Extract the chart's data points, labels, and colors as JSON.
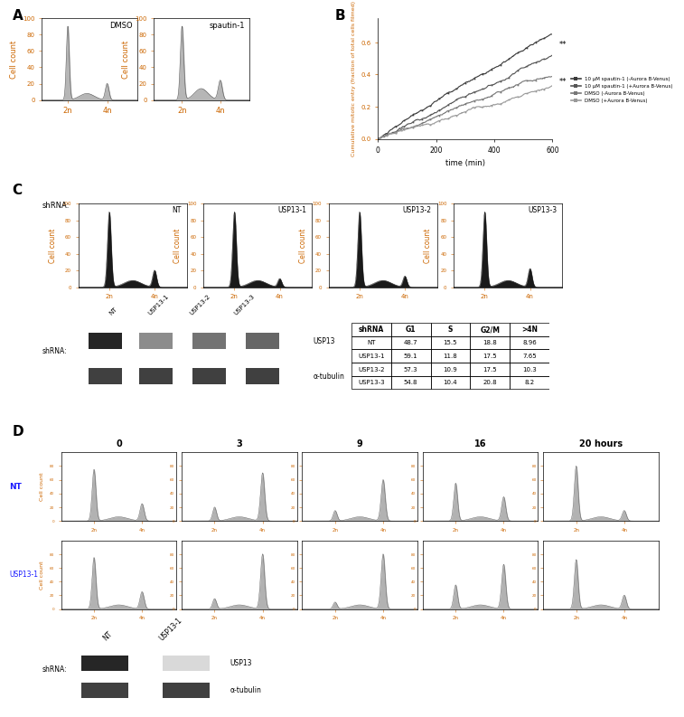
{
  "panel_A_titles": [
    "DMSO",
    "spautin-1"
  ],
  "panel_B_ylabel": "Cumulative mitotic entry (fraction of total cells filmed)",
  "panel_B_xlabel": "time (min)",
  "panel_B_legend": [
    "10 μM spautin-1 (-Aurora B-Venus)",
    "10 μM spautin-1 (+Aurora B-Venus)",
    "DMSO (-Aurora B-Venus)",
    "DMSO (+Aurora B-Venus)"
  ],
  "panel_C_shRNA_labels": [
    "NT",
    "USP13-1",
    "USP13-2",
    "USP13-3"
  ],
  "panel_C_table_headers": [
    "shRNA",
    "G1",
    "S",
    "G2/M",
    ">4N"
  ],
  "panel_C_table_data": [
    [
      "NT",
      "48.7",
      "15.5",
      "18.8",
      "8.96"
    ],
    [
      "USP13-1",
      "59.1",
      "11.8",
      "17.5",
      "7.65"
    ],
    [
      "USP13-2",
      "57.3",
      "10.9",
      "17.5",
      "10.3"
    ],
    [
      "USP13-3",
      "54.8",
      "10.4",
      "20.8",
      "8.2"
    ]
  ],
  "panel_D_row_labels": [
    "NT",
    "USP13-1"
  ],
  "panel_D_col_labels": [
    "0",
    "3",
    "9",
    "16",
    "20 hours"
  ],
  "fill_color_gray": "#aaaaaa",
  "fill_color_black": "#1a1a1a",
  "bg_color": "#ffffff",
  "text_color_orange": "#cc6600",
  "text_color_blue": "#1a1aff",
  "axis_color": "#333333"
}
